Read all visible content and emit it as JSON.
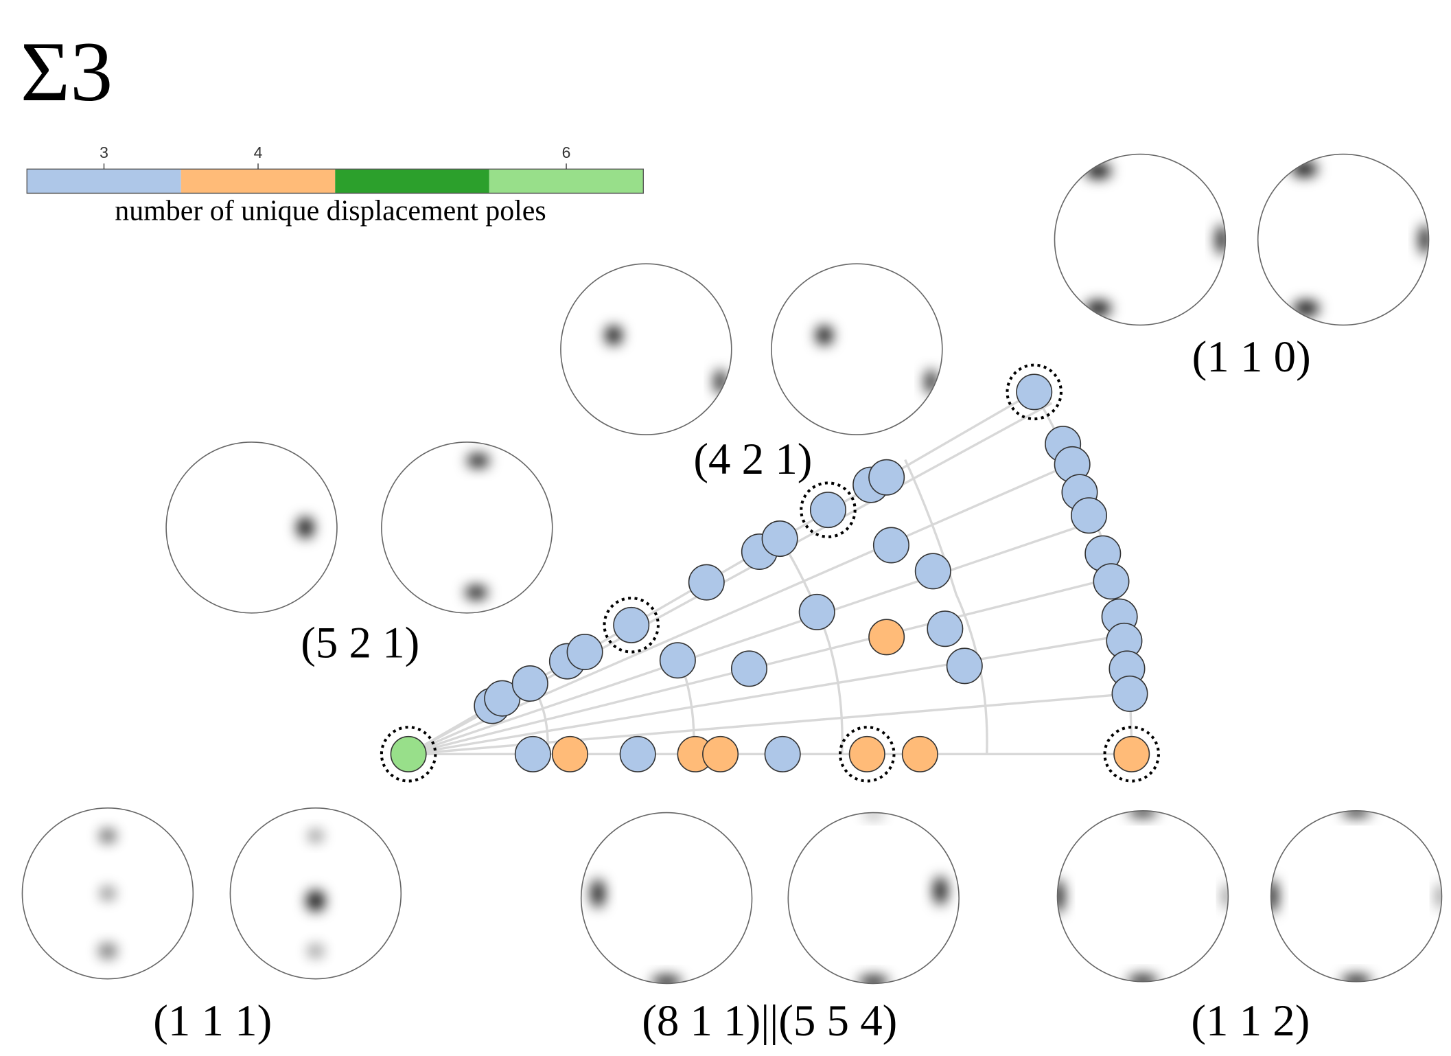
{
  "title": "Σ3",
  "colorbar": {
    "label": "number of unique displacement poles",
    "segments": [
      {
        "value": 3,
        "color": "#aec7e8"
      },
      {
        "value": 4,
        "color": "#ffbb78"
      },
      {
        "value": 5,
        "color": "#2ca02c"
      },
      {
        "value": 6,
        "color": "#98df8a"
      }
    ],
    "ticks": [
      3,
      4,
      6
    ]
  },
  "pole_figures": [
    {
      "label": "(1 1 0)"
    },
    {
      "label": "(4 2 1)"
    },
    {
      "label": "(5 2 1)"
    },
    {
      "label": "(1 1 1)"
    },
    {
      "label": "(8 1 1)||(5 5 4)"
    },
    {
      "label": "(1 1 2)"
    }
  ],
  "points": [
    {
      "poles": 6
    },
    {
      "poles": 3
    },
    {
      "poles": 4
    },
    {
      "poles": 3
    },
    {
      "poles": 4
    },
    {
      "poles": 4
    },
    {
      "poles": 3
    },
    {
      "poles": 4
    },
    {
      "poles": 4
    },
    {
      "poles": 4
    },
    {
      "poles": 3
    },
    {
      "poles": 3
    },
    {
      "poles": 3
    },
    {
      "poles": 3
    },
    {
      "poles": 3
    },
    {
      "poles": 3
    },
    {
      "poles": 3
    },
    {
      "poles": 3
    },
    {
      "poles": 3
    },
    {
      "poles": 3
    },
    {
      "poles": 3
    },
    {
      "poles": 3
    },
    {
      "poles": 3
    },
    {
      "poles": 3
    },
    {
      "poles": 3
    },
    {
      "poles": 3
    },
    {
      "poles": 3
    },
    {
      "poles": 3
    },
    {
      "poles": 3
    },
    {
      "poles": 3
    },
    {
      "poles": 3
    },
    {
      "poles": 3
    },
    {
      "poles": 3
    },
    {
      "poles": 3
    },
    {
      "poles": 3
    },
    {
      "poles": 3
    },
    {
      "poles": 4
    },
    {
      "poles": 3
    },
    {
      "poles": 3
    },
    {
      "poles": 3
    },
    {
      "poles": 3
    }
  ]
}
